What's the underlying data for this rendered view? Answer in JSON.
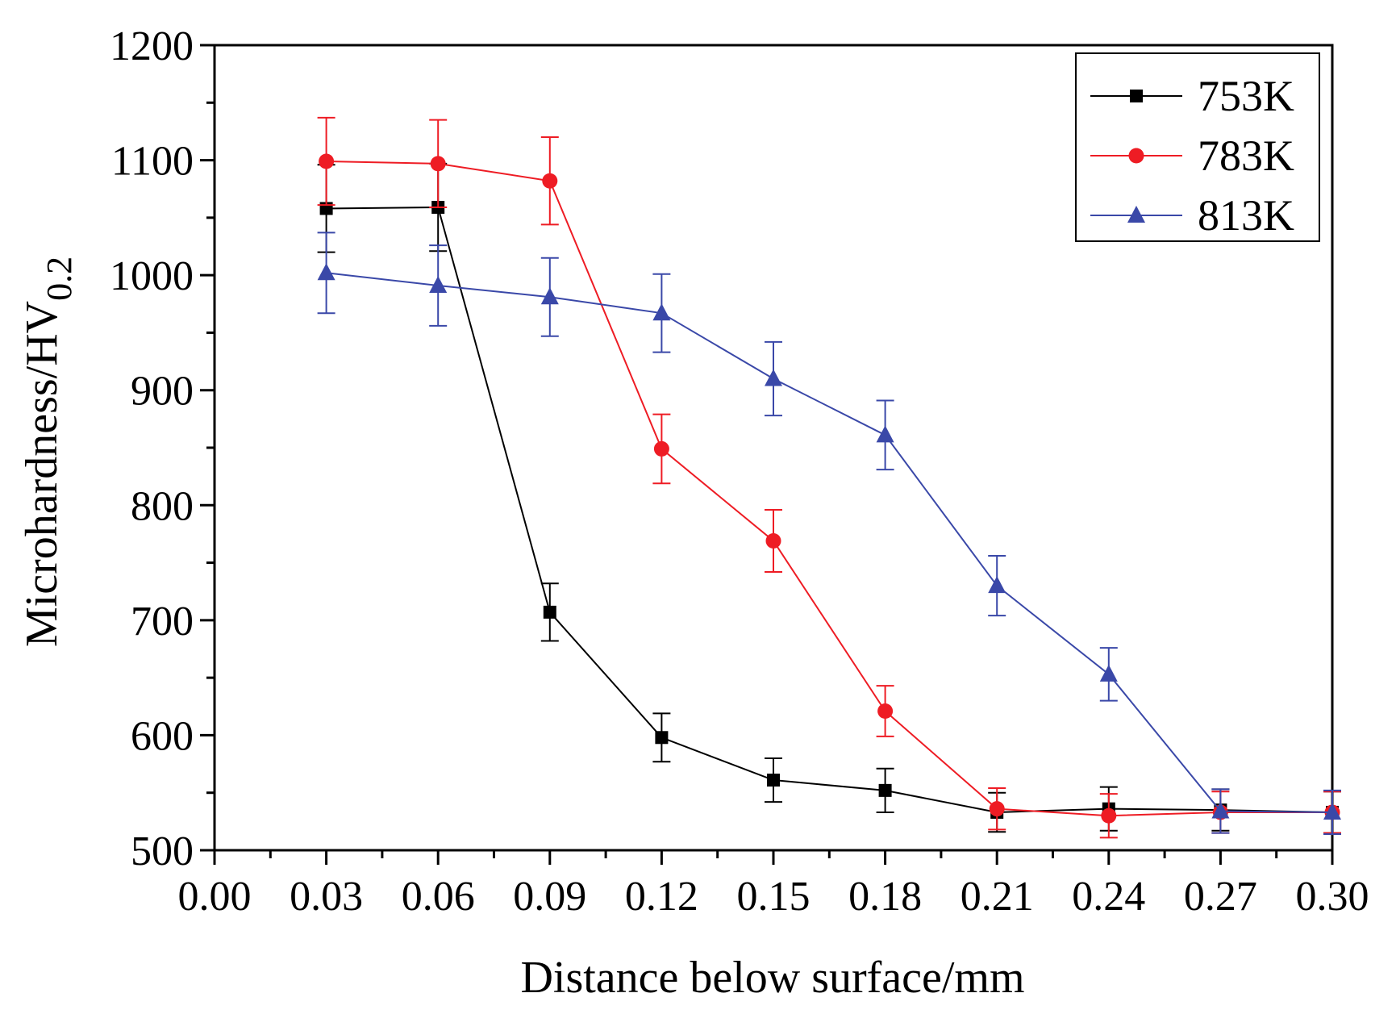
{
  "chart_data": {
    "type": "line",
    "title": "",
    "xlabel": "Distance below surface/mm",
    "ylabel_main": "Microhardness/HV",
    "ylabel_subscript": "0.2",
    "xlim": [
      0.0,
      0.3
    ],
    "ylim": [
      500,
      1200
    ],
    "xticks": [
      "0.00",
      "0.03",
      "0.06",
      "0.09",
      "0.12",
      "0.15",
      "0.18",
      "0.21",
      "0.24",
      "0.27",
      "0.30"
    ],
    "yticks": [
      "500",
      "600",
      "700",
      "800",
      "900",
      "1000",
      "1100",
      "1200"
    ],
    "legend_position": "top-right",
    "x": [
      0.03,
      0.06,
      0.09,
      0.12,
      0.15,
      0.18,
      0.21,
      0.24,
      0.27,
      0.3
    ],
    "series": [
      {
        "name": "753K",
        "color": "#000000",
        "marker": "square",
        "values": [
          1058,
          1059,
          707,
          598,
          561,
          552,
          533,
          536,
          535,
          533
        ],
        "errors": [
          38,
          38,
          25,
          21,
          19,
          19,
          17,
          19,
          18,
          18
        ]
      },
      {
        "name": "783K",
        "color": "#ee1c24",
        "marker": "circle",
        "values": [
          1099,
          1097,
          1082,
          849,
          769,
          621,
          536,
          530,
          533,
          533
        ],
        "errors": [
          38,
          38,
          38,
          30,
          27,
          22,
          18,
          19,
          18,
          18
        ]
      },
      {
        "name": "813K",
        "color": "#3a48a8",
        "marker": "triangle",
        "values": [
          1002,
          991,
          981,
          967,
          910,
          861,
          730,
          653,
          534,
          533
        ],
        "errors": [
          35,
          35,
          34,
          34,
          32,
          30,
          26,
          23,
          19,
          19
        ]
      }
    ]
  }
}
